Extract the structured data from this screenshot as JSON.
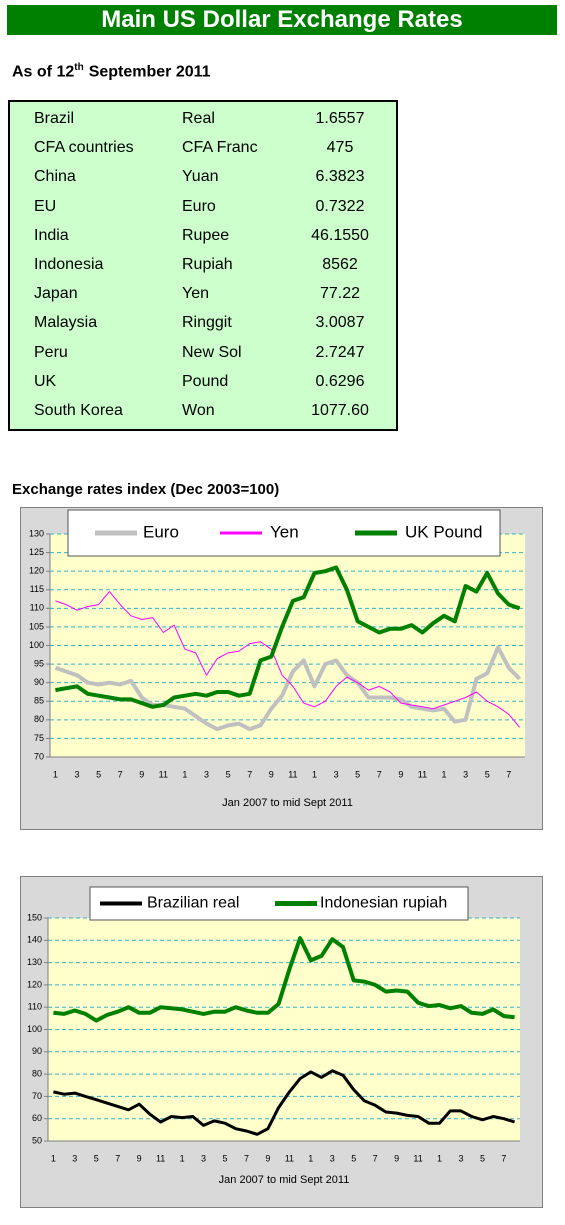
{
  "title": "Main US Dollar Exchange Rates",
  "date": {
    "before": "As of 12",
    "sup": "th",
    "after": "September 2011"
  },
  "table": {
    "rows": [
      [
        "Brazil",
        "Real",
        "1.6557"
      ],
      [
        "CFA countries",
        "CFA Franc",
        "475"
      ],
      [
        "China",
        "Yuan",
        "6.3823"
      ],
      [
        "EU",
        "Euro",
        "0.7322"
      ],
      [
        "India",
        "Rupee",
        "46.1550"
      ],
      [
        "Indonesia",
        "Rupiah",
        "8562"
      ],
      [
        "Japan",
        "Yen",
        "77.22"
      ],
      [
        "Malaysia",
        "Ringgit",
        "3.0087"
      ],
      [
        "Peru",
        "New Sol",
        "2.7247"
      ],
      [
        "UK",
        "Pound",
        "0.6296"
      ],
      [
        "South Korea",
        "Won",
        "1077.60"
      ]
    ]
  },
  "chart_data": [
    {
      "type": "line",
      "title": "Exchange rates index (Dec 2003=100)",
      "xlabel": "Jan 2007 to mid Sept 2011",
      "categories": [
        "1",
        null,
        "3",
        null,
        "5",
        null,
        "7",
        null,
        "9",
        null,
        "11",
        null,
        "1",
        null,
        "3",
        null,
        "5",
        null,
        "7",
        null,
        "9",
        null,
        "11",
        null,
        "1",
        null,
        "3",
        null,
        "5",
        null,
        "7",
        null,
        "9",
        null,
        "11",
        null,
        "1",
        null,
        "3",
        null,
        "5",
        null,
        "7",
        null
      ],
      "ylim": [
        70,
        130
      ],
      "yticks": [
        70,
        75,
        80,
        85,
        90,
        95,
        100,
        105,
        110,
        115,
        120,
        125,
        130
      ],
      "grid": true,
      "legend": "top",
      "series": [
        {
          "name": "Euro",
          "color": "#c0c0c0",
          "width": 4,
          "values": [
            94,
            93,
            92,
            90,
            89.5,
            90,
            89.5,
            90.5,
            86,
            84,
            84,
            83.5,
            83,
            81,
            79,
            77.5,
            78.5,
            79,
            77.5,
            78.5,
            83,
            86.5,
            93,
            96,
            89,
            95,
            96,
            92,
            90,
            86,
            86,
            86,
            85.5,
            83.5,
            83,
            82.5,
            83,
            79.5,
            80,
            91,
            92.5,
            99.5,
            94,
            91
          ]
        },
        {
          "name": "Yen",
          "color": "#ff00ff",
          "width": 1,
          "values": [
            112,
            111,
            109.5,
            110.5,
            111,
            114.5,
            111,
            108,
            107,
            107.5,
            103.5,
            105.5,
            99,
            98,
            92,
            96.5,
            98,
            98.5,
            100.5,
            101,
            99,
            92,
            89,
            84.5,
            83.5,
            85,
            89,
            91.5,
            90,
            88,
            89,
            87.5,
            84.5,
            84,
            83.5,
            83,
            84,
            85,
            86,
            87.5,
            85,
            83.5,
            81.5,
            78
          ]
        },
        {
          "name": "UK Pound",
          "color": "#008000",
          "width": 4,
          "values": [
            88,
            88.5,
            89,
            87,
            86.5,
            86,
            85.5,
            85.5,
            84.5,
            83.5,
            84,
            86,
            86.5,
            87,
            86.5,
            87.5,
            87.5,
            86.5,
            87,
            96,
            97,
            105,
            112,
            113,
            119.5,
            120,
            121,
            115,
            106.5,
            105,
            103.5,
            104.5,
            104.5,
            105.5,
            103.5,
            106,
            108,
            106.5,
            116,
            114.5,
            119.5,
            114,
            111,
            110
          ]
        }
      ]
    },
    {
      "type": "line",
      "xlabel": "Jan 2007 to mid Sept 2011",
      "categories": [
        "1",
        null,
        "3",
        null,
        "5",
        null,
        "7",
        null,
        "9",
        null,
        "11",
        null,
        "1",
        null,
        "3",
        null,
        "5",
        null,
        "7",
        null,
        "9",
        null,
        "11",
        null,
        "1",
        null,
        "3",
        null,
        "5",
        null,
        "7",
        null,
        "9",
        null,
        "11",
        null,
        "1",
        null,
        "3",
        null,
        "5",
        null,
        "7",
        null
      ],
      "ylim": [
        50,
        150
      ],
      "yticks": [
        50,
        60,
        70,
        80,
        90,
        100,
        110,
        120,
        130,
        140,
        150
      ],
      "grid": true,
      "legend": "top",
      "series": [
        {
          "name": "Brazilian real",
          "color": "#000000",
          "width": 3,
          "values": [
            72,
            71,
            71.5,
            70,
            68.5,
            67,
            65.5,
            64,
            66.5,
            62,
            58.5,
            61,
            60.5,
            61,
            57,
            59,
            58,
            55.5,
            54.5,
            53,
            55.5,
            65,
            72,
            78,
            81,
            78.5,
            81.5,
            79.5,
            73,
            68,
            66,
            63,
            62.5,
            61.5,
            61,
            58,
            58,
            63.5,
            63.5,
            61,
            59.5,
            61,
            60,
            58.5
          ]
        },
        {
          "name": "Indonesian rupiah",
          "color": "#008000",
          "width": 4,
          "values": [
            107.5,
            107,
            108.5,
            107,
            104,
            106.5,
            108,
            110,
            107.5,
            107.5,
            110,
            109.5,
            109,
            108,
            107,
            108,
            108,
            110,
            108.5,
            107.5,
            107.5,
            111.5,
            127,
            141,
            131,
            133,
            140.5,
            137,
            122,
            121.5,
            120,
            117,
            117.5,
            117,
            112,
            110.5,
            111,
            109.5,
            110.5,
            107.5,
            107,
            109,
            106,
            105.5
          ]
        }
      ]
    }
  ]
}
